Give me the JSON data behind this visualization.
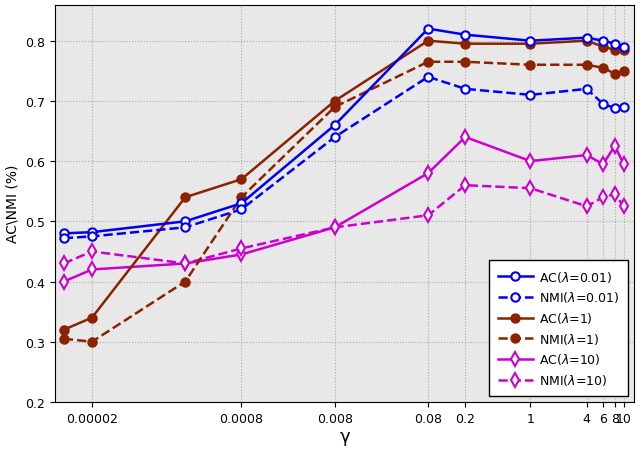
{
  "x_values": [
    1e-05,
    2e-05,
    0.0002,
    0.0008,
    0.008,
    0.08,
    0.2,
    1,
    4,
    6,
    8,
    10
  ],
  "x_ticks": [
    2e-05,
    0.0008,
    0.008,
    0.08,
    0.2,
    1,
    4,
    6,
    8,
    10
  ],
  "x_ticklabels": [
    "0.00002",
    "0.0008",
    "0.008",
    "0.08",
    "0.2",
    "1",
    "4",
    "6",
    "8",
    "10"
  ],
  "AC_001": [
    0.48,
    0.482,
    0.5,
    0.53,
    0.66,
    0.82,
    0.81,
    0.8,
    0.805,
    0.8,
    0.795,
    0.79
  ],
  "NMI_001": [
    0.472,
    0.475,
    0.49,
    0.52,
    0.64,
    0.74,
    0.72,
    0.71,
    0.72,
    0.695,
    0.688,
    0.69
  ],
  "AC_1": [
    0.32,
    0.34,
    0.54,
    0.57,
    0.7,
    0.8,
    0.795,
    0.795,
    0.8,
    0.79,
    0.785,
    0.785
  ],
  "NMI_1": [
    0.305,
    0.3,
    0.4,
    0.54,
    0.69,
    0.765,
    0.765,
    0.76,
    0.76,
    0.755,
    0.745,
    0.75
  ],
  "AC_10": [
    0.4,
    0.42,
    0.43,
    0.445,
    0.49,
    0.58,
    0.64,
    0.6,
    0.61,
    0.595,
    0.625,
    0.595
  ],
  "NMI_10": [
    0.43,
    0.45,
    0.43,
    0.455,
    0.49,
    0.51,
    0.56,
    0.555,
    0.525,
    0.54,
    0.545,
    0.525
  ],
  "blue": "#0000EE",
  "brown": "#8B2200",
  "magenta": "#CC00CC",
  "ylim": [
    0.2,
    0.86
  ],
  "yticks": [
    0.2,
    0.3,
    0.4,
    0.5,
    0.6,
    0.7,
    0.8
  ],
  "ylabel": "AC\\NMI (%)",
  "xlabel": "γ",
  "bg_color": "#e8e8e8",
  "grid_color": "#aaaaaa",
  "lw": 1.8,
  "ms": 6.0
}
